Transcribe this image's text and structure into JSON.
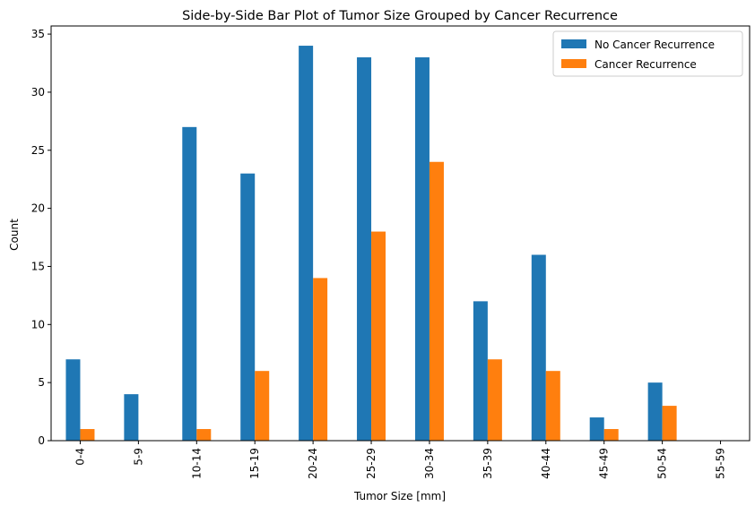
{
  "chart_data": {
    "type": "bar",
    "title": "Side-by-Side Bar Plot of Tumor Size Grouped by Cancer Recurrence",
    "xlabel": "Tumor Size [mm]",
    "ylabel": "Count",
    "categories": [
      "0-4",
      "5-9",
      "10-14",
      "15-19",
      "20-24",
      "25-29",
      "30-34",
      "35-39",
      "40-44",
      "45-49",
      "50-54",
      "55-59"
    ],
    "series": [
      {
        "name": "No Cancer Recurrence",
        "color": "#1f77b4",
        "values": [
          7,
          4,
          27,
          23,
          34,
          33,
          33,
          12,
          16,
          2,
          5,
          0
        ]
      },
      {
        "name": "Cancer Recurrence",
        "color": "#ff7f0e",
        "values": [
          1,
          0,
          1,
          6,
          14,
          18,
          24,
          7,
          6,
          1,
          3,
          0
        ]
      }
    ],
    "ylim": [
      0,
      35.7
    ],
    "yticks": [
      0,
      5,
      10,
      15,
      20,
      25,
      30,
      35
    ],
    "x_tick_rotation_deg": 90,
    "grid": false,
    "legend": "top-right"
  }
}
